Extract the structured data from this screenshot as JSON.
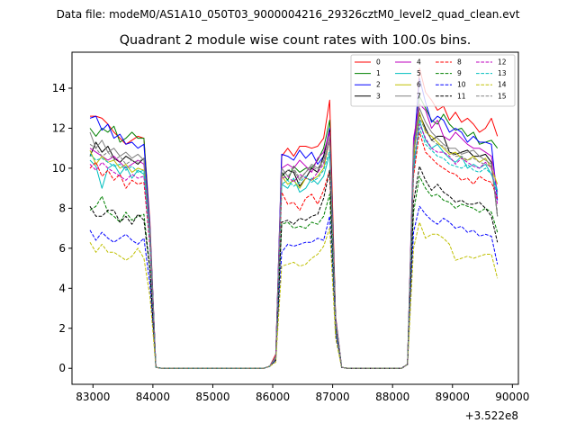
{
  "chart_data": {
    "type": "line",
    "suptitle": "Data file: modeM0/AS1A10_050T03_9000004216_29326cztM0_level2_quad_clean.evt",
    "title": "Quadrant 2 module wise count rates with 100.0s bins.",
    "xlabel": "",
    "ylabel": "",
    "offset_label": "+3.522e8",
    "xlim": [
      82650,
      90100
    ],
    "ylim": [
      -0.8,
      15.8
    ],
    "xticks": [
      83000,
      84000,
      85000,
      86000,
      87000,
      88000,
      89000,
      90000
    ],
    "xtick_labels": [
      "83000",
      "84000",
      "85000",
      "86000",
      "87000",
      "88000",
      "89000",
      "90000"
    ],
    "yticks": [
      0,
      2,
      4,
      6,
      8,
      10,
      12,
      14
    ],
    "ytick_labels": [
      "0",
      "2",
      "4",
      "6",
      "8",
      "10",
      "12",
      "14"
    ],
    "x": [
      82950,
      83050,
      83150,
      83250,
      83350,
      83450,
      83550,
      83650,
      83750,
      83850,
      83950,
      84050,
      84150,
      84250,
      84350,
      84450,
      84550,
      84650,
      84750,
      84850,
      84950,
      85050,
      85150,
      85250,
      85350,
      85450,
      85550,
      85650,
      85750,
      85850,
      85950,
      86050,
      86150,
      86250,
      86350,
      86450,
      86550,
      86650,
      86750,
      86850,
      86950,
      87050,
      87150,
      87250,
      87350,
      87450,
      87550,
      87650,
      87750,
      87850,
      87950,
      88050,
      88150,
      88250,
      88350,
      88450,
      88550,
      88650,
      88750,
      88850,
      88950,
      89050,
      89150,
      89250,
      89350,
      89450,
      89550,
      89650,
      89750
    ],
    "legend": {
      "location": "upper right",
      "ncol": 4
    },
    "series": [
      {
        "name": "0",
        "color": "#ff0000",
        "dash": "solid",
        "values": [
          12.6,
          12.6,
          12.5,
          12.2,
          11.8,
          11.5,
          11.2,
          11.4,
          11.6,
          11.5,
          7.3,
          0.05,
          0,
          0,
          0,
          0,
          0,
          0,
          0,
          0,
          0,
          0,
          0,
          0,
          0,
          0,
          0,
          0,
          0,
          0,
          0.1,
          0.7,
          10.6,
          11.0,
          10.6,
          11.1,
          11.1,
          11.0,
          11.1,
          11.5,
          13.4,
          2.6,
          0.05,
          0,
          0,
          0,
          0,
          0,
          0,
          0,
          0,
          0,
          0,
          0.2,
          10.1,
          15.0,
          13.8,
          13.4,
          12.9,
          13.1,
          12.4,
          12.8,
          12.3,
          12.5,
          12.2,
          11.8,
          12.0,
          12.5,
          11.6
        ]
      },
      {
        "name": "1",
        "color": "#008000",
        "dash": "solid",
        "values": [
          12.0,
          11.6,
          12.0,
          11.8,
          12.1,
          11.3,
          11.5,
          11.8,
          11.5,
          11.5,
          7.0,
          0.05,
          0,
          0,
          0,
          0,
          0,
          0,
          0,
          0,
          0,
          0,
          0,
          0,
          0,
          0,
          0,
          0,
          0,
          0,
          0.1,
          0.6,
          9.8,
          9.4,
          10.1,
          9.8,
          10.0,
          10.0,
          10.4,
          11.0,
          12.4,
          2.5,
          0.05,
          0,
          0,
          0,
          0,
          0,
          0,
          0,
          0,
          0,
          0,
          0.2,
          10.5,
          13.6,
          13.0,
          12.4,
          12.2,
          12.7,
          12.2,
          11.9,
          12.0,
          11.6,
          11.8,
          11.2,
          11.3,
          11.4,
          11.0
        ]
      },
      {
        "name": "2",
        "color": "#0000ff",
        "dash": "solid",
        "values": [
          12.5,
          12.6,
          11.9,
          12.2,
          11.5,
          11.7,
          11.2,
          11.3,
          11.0,
          11.2,
          7.1,
          0.05,
          0,
          0,
          0,
          0,
          0,
          0,
          0,
          0,
          0,
          0,
          0,
          0,
          0,
          0,
          0,
          0,
          0,
          0,
          0.1,
          0.6,
          10.7,
          10.6,
          10.4,
          10.9,
          10.5,
          10.8,
          10.2,
          10.6,
          12.0,
          2.5,
          0.05,
          0,
          0,
          0,
          0,
          0,
          0,
          0,
          0,
          0,
          0,
          0.2,
          10.9,
          14.5,
          13.3,
          12.3,
          12.6,
          12.4,
          11.8,
          12.0,
          11.8,
          11.3,
          11.6,
          11.3,
          11.3,
          11.2,
          8.4
        ]
      },
      {
        "name": "3",
        "color": "#000000",
        "dash": "solid",
        "values": [
          10.6,
          11.3,
          10.8,
          11.1,
          10.5,
          10.3,
          10.6,
          10.4,
          10.2,
          10.5,
          6.8,
          0.05,
          0,
          0,
          0,
          0,
          0,
          0,
          0,
          0,
          0,
          0,
          0,
          0,
          0,
          0,
          0,
          0,
          0,
          0,
          0.1,
          0.6,
          9.6,
          9.9,
          9.8,
          9.1,
          9.5,
          10.0,
          9.8,
          10.6,
          11.9,
          2.4,
          0.05,
          0,
          0,
          0,
          0,
          0,
          0,
          0,
          0,
          0,
          0,
          0.2,
          11.0,
          12.7,
          12.0,
          11.4,
          11.6,
          11.6,
          10.8,
          10.7,
          10.8,
          10.9,
          10.6,
          10.6,
          10.7,
          10.3,
          7.6
        ]
      },
      {
        "name": "4",
        "color": "#bf00bf",
        "dash": "solid",
        "values": [
          11.0,
          10.8,
          10.6,
          10.4,
          10.6,
          10.3,
          10.0,
          10.2,
          10.4,
          10.2,
          6.6,
          0.05,
          0,
          0,
          0,
          0,
          0,
          0,
          0,
          0,
          0,
          0,
          0,
          0,
          0,
          0,
          0,
          0,
          0,
          0,
          0.1,
          0.6,
          10.0,
          10.2,
          10.0,
          10.4,
          10.1,
          9.8,
          10.5,
          10.8,
          11.8,
          2.4,
          0.05,
          0,
          0,
          0,
          0,
          0,
          0,
          0,
          0,
          0,
          0,
          0.2,
          11.5,
          13.2,
          12.9,
          12.0,
          12.4,
          11.6,
          11.4,
          11.8,
          11.5,
          11.2,
          11.0,
          11.0,
          10.8,
          10.6,
          8.8
        ]
      },
      {
        "name": "5",
        "color": "#00bfbf",
        "dash": "solid",
        "values": [
          10.4,
          10.1,
          9.0,
          10.0,
          10.2,
          9.7,
          10.1,
          9.5,
          9.9,
          9.7,
          6.4,
          0.05,
          0,
          0,
          0,
          0,
          0,
          0,
          0,
          0,
          0,
          0,
          0,
          0,
          0,
          0,
          0,
          0,
          0,
          0,
          0.1,
          0.5,
          9.2,
          9.0,
          9.5,
          8.8,
          9.0,
          9.5,
          9.2,
          9.6,
          10.7,
          2.2,
          0.05,
          0,
          0,
          0,
          0,
          0,
          0,
          0,
          0,
          0,
          0,
          0.2,
          9.8,
          12.4,
          11.4,
          11.0,
          11.2,
          10.8,
          10.5,
          10.3,
          10.6,
          10.0,
          10.2,
          10.0,
          10.2,
          9.7,
          8.9
        ]
      },
      {
        "name": "6",
        "color": "#bfbf00",
        "dash": "solid",
        "values": [
          10.9,
          10.2,
          10.6,
          10.3,
          10.4,
          10.0,
          10.2,
          9.8,
          10.0,
          9.9,
          6.5,
          0.05,
          0,
          0,
          0,
          0,
          0,
          0,
          0,
          0,
          0,
          0,
          0,
          0,
          0,
          0,
          0,
          0,
          0,
          0,
          0.1,
          0.5,
          9.6,
          9.2,
          9.4,
          9.0,
          9.5,
          9.4,
          9.6,
          10.0,
          11.4,
          2.3,
          0.05,
          0,
          0,
          0,
          0,
          0,
          0,
          0,
          0,
          0,
          0,
          0.2,
          10.6,
          12.8,
          11.8,
          11.6,
          11.3,
          11.0,
          10.7,
          10.8,
          10.5,
          10.4,
          10.6,
          10.3,
          10.5,
          10.0,
          9.2
        ]
      },
      {
        "name": "7",
        "color": "#808080",
        "dash": "solid",
        "values": [
          11.8,
          11.0,
          11.4,
          10.8,
          11.0,
          10.6,
          10.8,
          10.5,
          10.7,
          10.4,
          6.9,
          0.05,
          0,
          0,
          0,
          0,
          0,
          0,
          0,
          0,
          0,
          0,
          0,
          0,
          0,
          0,
          0,
          0,
          0,
          0,
          0.1,
          0.6,
          10.0,
          9.6,
          9.9,
          9.4,
          9.8,
          10.2,
          10.0,
          10.4,
          11.6,
          2.4,
          0.05,
          0,
          0,
          0,
          0,
          0,
          0,
          0,
          0,
          0,
          0,
          0.2,
          11.0,
          13.0,
          12.3,
          11.8,
          11.5,
          11.2,
          11.0,
          11.0,
          10.7,
          10.8,
          10.9,
          10.6,
          10.4,
          10.2,
          7.6
        ]
      },
      {
        "name": "8",
        "color": "#ff0000",
        "dash": "dashed",
        "values": [
          10.0,
          10.3,
          9.6,
          9.9,
          9.4,
          9.7,
          9.0,
          9.4,
          9.2,
          9.3,
          6.1,
          0.05,
          0,
          0,
          0,
          0,
          0,
          0,
          0,
          0,
          0,
          0,
          0,
          0,
          0,
          0,
          0,
          0,
          0,
          0,
          0.1,
          0.5,
          8.8,
          8.2,
          8.3,
          7.9,
          8.5,
          8.7,
          8.2,
          8.9,
          9.9,
          2.1,
          0.05,
          0,
          0,
          0,
          0,
          0,
          0,
          0,
          0,
          0,
          0,
          0.2,
          9.6,
          11.8,
          10.8,
          10.5,
          10.2,
          10.0,
          9.8,
          9.7,
          9.4,
          9.5,
          9.2,
          9.6,
          9.4,
          9.3,
          8.5
        ]
      },
      {
        "name": "9",
        "color": "#008000",
        "dash": "dashed",
        "values": [
          7.9,
          8.1,
          8.6,
          7.8,
          7.6,
          7.3,
          7.8,
          7.4,
          7.6,
          7.7,
          5.0,
          0.05,
          0,
          0,
          0,
          0,
          0,
          0,
          0,
          0,
          0,
          0,
          0,
          0,
          0,
          0,
          0,
          0,
          0,
          0,
          0.1,
          0.4,
          7.2,
          7.3,
          7.0,
          7.1,
          7.0,
          7.3,
          7.2,
          7.6,
          8.7,
          1.9,
          0.05,
          0,
          0,
          0,
          0,
          0,
          0,
          0,
          0,
          0,
          0,
          0.2,
          7.8,
          9.6,
          9.0,
          8.6,
          8.7,
          8.4,
          8.3,
          8.0,
          8.2,
          8.1,
          8.0,
          7.8,
          8.0,
          7.8,
          6.8
        ]
      },
      {
        "name": "10",
        "color": "#0000ff",
        "dash": "dashed",
        "values": [
          6.9,
          6.4,
          6.8,
          6.5,
          6.3,
          6.5,
          6.7,
          6.4,
          6.2,
          6.5,
          4.2,
          0.05,
          0,
          0,
          0,
          0,
          0,
          0,
          0,
          0,
          0,
          0,
          0,
          0,
          0,
          0,
          0,
          0,
          0,
          0,
          0.1,
          0.4,
          5.8,
          6.2,
          6.1,
          6.2,
          6.3,
          6.3,
          6.5,
          6.4,
          7.6,
          1.7,
          0.05,
          0,
          0,
          0,
          0,
          0,
          0,
          0,
          0,
          0,
          0,
          0.2,
          6.8,
          8.1,
          7.7,
          7.4,
          7.2,
          7.5,
          7.3,
          7.0,
          7.1,
          6.8,
          6.9,
          6.6,
          6.7,
          6.6,
          5.2
        ]
      },
      {
        "name": "11",
        "color": "#000000",
        "dash": "dashed",
        "values": [
          8.1,
          7.6,
          7.6,
          7.9,
          7.9,
          7.3,
          7.6,
          7.2,
          7.7,
          7.4,
          4.9,
          0.05,
          0,
          0,
          0,
          0,
          0,
          0,
          0,
          0,
          0,
          0,
          0,
          0,
          0,
          0,
          0,
          0,
          0,
          0,
          0.1,
          0.4,
          7.3,
          7.4,
          7.2,
          7.5,
          7.4,
          7.6,
          7.7,
          8.5,
          9.9,
          2.0,
          0.05,
          0,
          0,
          0,
          0,
          0,
          0,
          0,
          0,
          0,
          0,
          0.2,
          8.3,
          10.1,
          9.4,
          8.9,
          9.2,
          8.8,
          8.6,
          8.3,
          8.4,
          8.2,
          8.2,
          8.3,
          8.0,
          7.6,
          6.3
        ]
      },
      {
        "name": "12",
        "color": "#bf00bf",
        "dash": "dashed",
        "values": [
          10.2,
          9.9,
          10.3,
          10.0,
          9.8,
          9.6,
          9.4,
          9.7,
          9.5,
          9.6,
          6.2,
          0.05,
          0,
          0,
          0,
          0,
          0,
          0,
          0,
          0,
          0,
          0,
          0,
          0,
          0,
          0,
          0,
          0,
          0,
          0,
          0.1,
          0.5,
          9.5,
          9.6,
          9.3,
          9.7,
          9.5,
          9.4,
          9.8,
          10.2,
          11.4,
          2.2,
          0.05,
          0,
          0,
          0,
          0,
          0,
          0,
          0,
          0,
          0,
          0,
          0.2,
          10.2,
          12.2,
          11.5,
          11.0,
          10.8,
          10.8,
          10.6,
          10.2,
          10.5,
          10.3,
          10.1,
          10.0,
          10.3,
          10.0,
          8.2
        ]
      },
      {
        "name": "13",
        "color": "#00bfbf",
        "dash": "dashed",
        "values": [
          10.7,
          10.4,
          10.5,
          10.3,
          10.1,
          10.2,
          9.9,
          10.1,
          9.8,
          9.9,
          6.4,
          0.05,
          0,
          0,
          0,
          0,
          0,
          0,
          0,
          0,
          0,
          0,
          0,
          0,
          0,
          0,
          0,
          0,
          0,
          0,
          0.1,
          0.5,
          9.2,
          9.4,
          9.1,
          9.3,
          9.6,
          9.3,
          9.5,
          9.9,
          10.9,
          2.2,
          0.05,
          0,
          0,
          0,
          0,
          0,
          0,
          0,
          0,
          0,
          0,
          0.2,
          10.3,
          12.0,
          11.2,
          10.9,
          10.6,
          10.5,
          10.2,
          10.1,
          10.0,
          10.2,
          9.9,
          9.8,
          10.0,
          9.7,
          8.7
        ]
      },
      {
        "name": "14",
        "color": "#bfbf00",
        "dash": "dashed",
        "values": [
          6.3,
          5.8,
          6.2,
          5.8,
          5.8,
          5.6,
          5.4,
          5.6,
          6.0,
          5.5,
          3.6,
          0.05,
          0,
          0,
          0,
          0,
          0,
          0,
          0,
          0,
          0,
          0,
          0,
          0,
          0,
          0,
          0,
          0,
          0,
          0,
          0.1,
          0.3,
          5.1,
          5.2,
          5.3,
          5.1,
          5.2,
          5.5,
          5.7,
          6.1,
          7.0,
          1.5,
          0.05,
          0,
          0,
          0,
          0,
          0,
          0,
          0,
          0,
          0,
          0,
          0.2,
          6.0,
          7.3,
          6.5,
          6.7,
          6.7,
          6.5,
          6.2,
          5.4,
          5.5,
          5.6,
          5.5,
          5.6,
          5.7,
          5.7,
          4.5
        ]
      },
      {
        "name": "15",
        "color": "#808080",
        "dash": "dashed",
        "values": [
          11.2,
          11.0,
          10.6,
          10.8,
          10.4,
          10.6,
          10.2,
          10.4,
          10.3,
          10.5,
          6.7,
          0.05,
          0,
          0,
          0,
          0,
          0,
          0,
          0,
          0,
          0,
          0,
          0,
          0,
          0,
          0,
          0,
          0,
          0,
          0,
          0.1,
          0.5,
          9.7,
          9.9,
          10.0,
          9.5,
          9.8,
          10.1,
          9.9,
          10.3,
          11.3,
          2.3,
          0.05,
          0,
          0,
          0,
          0,
          0,
          0,
          0,
          0,
          0,
          0,
          0.2,
          10.8,
          12.5,
          11.9,
          11.4,
          11.2,
          11.1,
          10.8,
          10.6,
          10.6,
          10.4,
          10.5,
          10.3,
          10.2,
          10.1,
          7.8
        ]
      }
    ]
  }
}
